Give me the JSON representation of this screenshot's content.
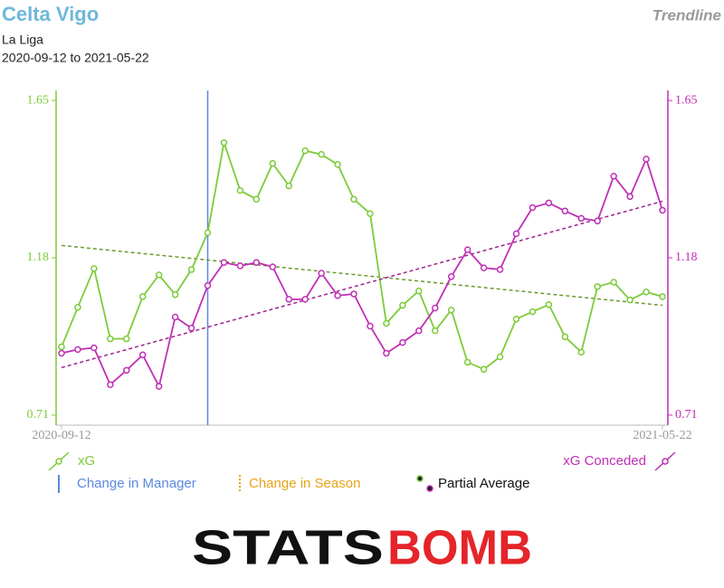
{
  "chart_data": {
    "type": "line",
    "title": "Celta Vigo",
    "subtitle": "La Liga",
    "date_range": "2020-09-12 to 2021-05-22",
    "mode": "Trendline",
    "categories": [
      "2020-09-12",
      null,
      null,
      null,
      null,
      null,
      null,
      null,
      null,
      null,
      null,
      null,
      null,
      null,
      null,
      null,
      null,
      null,
      null,
      null,
      null,
      null,
      null,
      null,
      null,
      null,
      null,
      null,
      null,
      null,
      null,
      null,
      null,
      null,
      null,
      null,
      null,
      "2021-05-22"
    ],
    "ylim": [
      0.68,
      1.68
    ],
    "yticks": [
      0.71,
      1.18,
      1.65
    ],
    "y2lim": [
      0.68,
      1.68
    ],
    "y2ticks": [
      0.71,
      1.18,
      1.65
    ],
    "manager_change_at": 9,
    "manager_color": "#5b87e0",
    "season_color": "#e8a317",
    "series": [
      {
        "name": "xG",
        "color": "#7dcb3a",
        "trend_color": "#6a9a2e",
        "trendline": [
          1.217,
          1.038
        ],
        "values": [
          0.914,
          1.032,
          1.148,
          0.938,
          0.938,
          1.064,
          1.129,
          1.07,
          1.145,
          1.255,
          1.524,
          1.381,
          1.355,
          1.462,
          1.395,
          1.5,
          1.489,
          1.459,
          1.355,
          1.312,
          0.984,
          1.038,
          1.081,
          0.962,
          1.024,
          0.868,
          0.847,
          0.884,
          0.997,
          1.019,
          1.04,
          0.944,
          0.898,
          1.094,
          1.107,
          1.054,
          1.078,
          1.064
        ]
      },
      {
        "name": "xG Conceded",
        "axis": "y2",
        "color": "#c02fb5",
        "trend_color": "#a0228f",
        "trendline": [
          0.852,
          1.349
        ],
        "values": [
          0.895,
          0.906,
          0.911,
          0.801,
          0.844,
          0.89,
          0.796,
          1.003,
          0.97,
          1.097,
          1.166,
          1.156,
          1.166,
          1.153,
          1.056,
          1.056,
          1.134,
          1.067,
          1.072,
          0.976,
          0.895,
          0.927,
          0.962,
          1.03,
          1.124,
          1.204,
          1.15,
          1.145,
          1.252,
          1.33,
          1.344,
          1.32,
          1.298,
          1.29,
          1.424,
          1.363,
          1.475,
          1.322
        ]
      }
    ],
    "legend_extra": [
      "Change in Manager",
      "Change in Season",
      "Partial Average"
    ],
    "logo": [
      "STATS",
      "BOMB"
    ]
  }
}
